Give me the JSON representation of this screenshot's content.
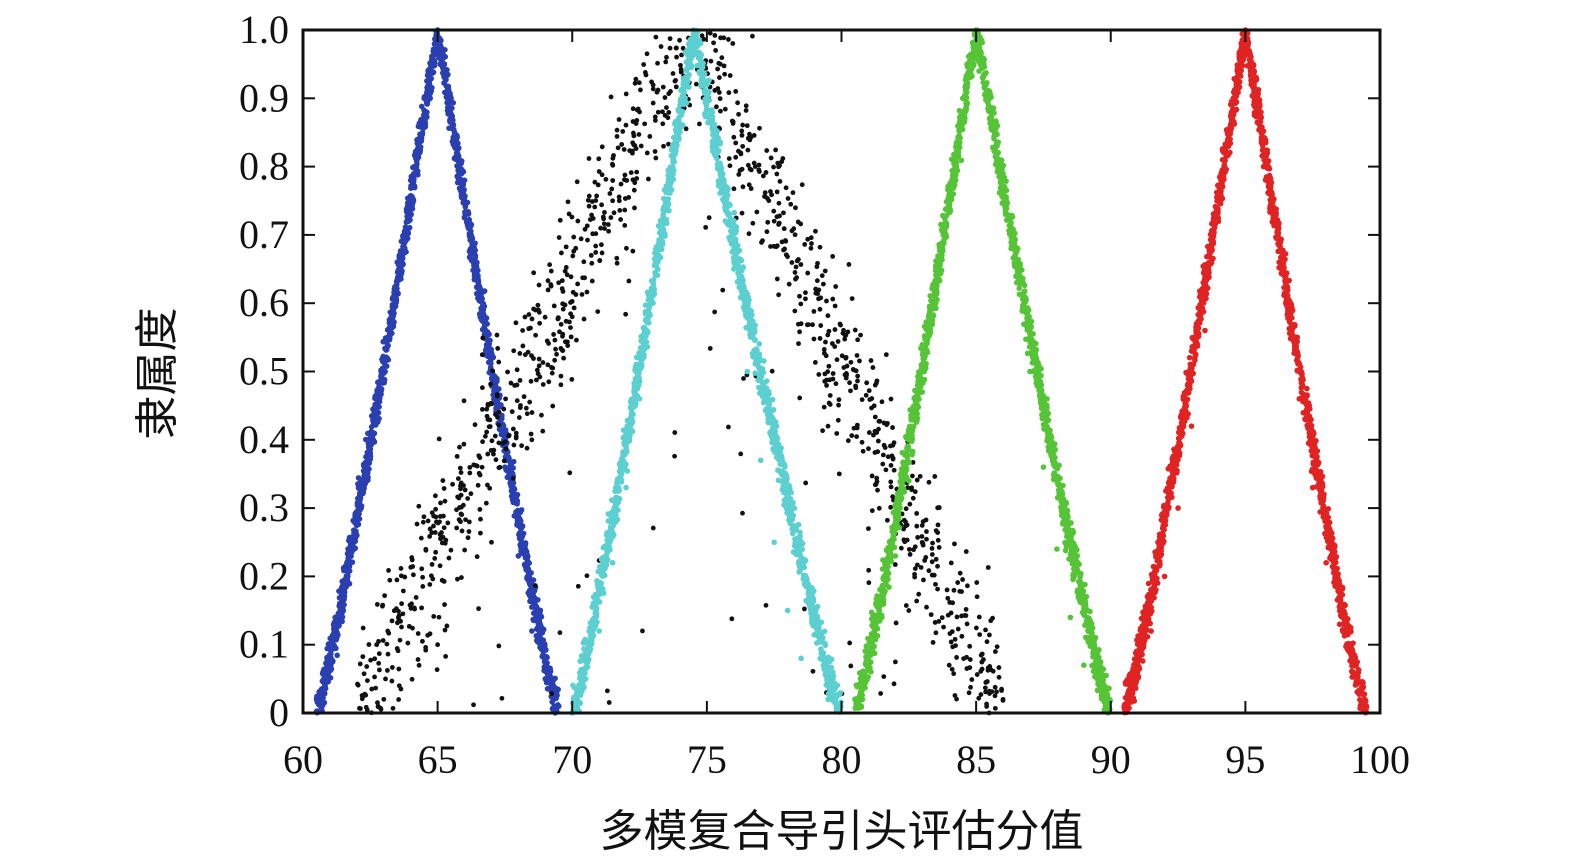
{
  "chart_data": {
    "type": "scatter",
    "xlabel": "多模复合导引头评估分值",
    "ylabel": "隶属度",
    "xlim": [
      60,
      100
    ],
    "ylim": [
      0,
      1.0
    ],
    "x_ticks": [
      "60",
      "65",
      "70",
      "75",
      "80",
      "85",
      "90",
      "95",
      "100"
    ],
    "x_tick_values": [
      60,
      65,
      70,
      75,
      80,
      85,
      90,
      95,
      100
    ],
    "y_ticks": [
      "0",
      "0.1",
      "0.2",
      "0.3",
      "0.4",
      "0.5",
      "0.6",
      "0.7",
      "0.8",
      "0.9",
      "1.0"
    ],
    "y_tick_values": [
      0,
      0.1,
      0.2,
      0.3,
      0.4,
      0.5,
      0.6,
      0.7,
      0.8,
      0.9,
      1.0
    ],
    "grid": false,
    "legend": "none",
    "series": [
      {
        "color": "#2a3fb0",
        "peak_x": 65,
        "x_range": [
          60.5,
          69.5
        ],
        "peak_y": 1.0,
        "spread": "narrow",
        "points": [
          [
            60.5,
            0.02
          ],
          [
            61.0,
            0.07
          ],
          [
            61.5,
            0.15
          ],
          [
            62.0,
            0.26
          ],
          [
            62.5,
            0.38
          ],
          [
            63.0,
            0.52
          ],
          [
            63.5,
            0.66
          ],
          [
            64.0,
            0.78
          ],
          [
            64.5,
            0.9
          ],
          [
            65.0,
            1.0
          ],
          [
            65.5,
            0.9
          ],
          [
            66.0,
            0.78
          ],
          [
            66.5,
            0.64
          ],
          [
            67.0,
            0.5
          ],
          [
            67.5,
            0.36
          ],
          [
            68.0,
            0.23
          ],
          [
            68.5,
            0.12
          ],
          [
            69.0,
            0.05
          ],
          [
            69.5,
            0.01
          ]
        ]
      },
      {
        "color": "#111111",
        "peak_x": 74.5,
        "x_range": [
          62,
          86
        ],
        "peak_y": 1.0,
        "spread": "wide",
        "points": [
          [
            63,
            0.02
          ],
          [
            65,
            0.1
          ],
          [
            67,
            0.25
          ],
          [
            68.5,
            0.4
          ],
          [
            70,
            0.58
          ],
          [
            71.5,
            0.75
          ],
          [
            72.5,
            0.88
          ],
          [
            73.5,
            0.96
          ],
          [
            74.5,
            1.0
          ],
          [
            75.5,
            0.95
          ],
          [
            76.5,
            0.86
          ],
          [
            77.5,
            0.72
          ],
          [
            78.5,
            0.57
          ],
          [
            79.5,
            0.42
          ],
          [
            81,
            0.27
          ],
          [
            82.5,
            0.15
          ],
          [
            84,
            0.07
          ],
          [
            86,
            0.02
          ]
        ]
      },
      {
        "color": "#5ccfd0",
        "peak_x": 74.5,
        "x_range": [
          70,
          80
        ],
        "peak_y": 1.0,
        "spread": "narrow",
        "points": [
          [
            70.0,
            0.0
          ],
          [
            70.5,
            0.05
          ],
          [
            71.0,
            0.12
          ],
          [
            71.5,
            0.22
          ],
          [
            72.0,
            0.33
          ],
          [
            72.5,
            0.46
          ],
          [
            73.0,
            0.6
          ],
          [
            73.5,
            0.75
          ],
          [
            74.0,
            0.89
          ],
          [
            74.5,
            1.0
          ],
          [
            75.0,
            0.92
          ],
          [
            75.5,
            0.79
          ],
          [
            76.0,
            0.65
          ],
          [
            76.5,
            0.5
          ],
          [
            77.0,
            0.37
          ],
          [
            77.5,
            0.25
          ],
          [
            78.0,
            0.15
          ],
          [
            78.5,
            0.08
          ],
          [
            79.5,
            0.02
          ]
        ]
      },
      {
        "color": "#55c436",
        "peak_x": 85,
        "x_range": [
          80.5,
          90
        ],
        "peak_y": 1.0,
        "spread": "narrow",
        "points": [
          [
            80.5,
            0.02
          ],
          [
            81.0,
            0.07
          ],
          [
            81.5,
            0.14
          ],
          [
            82.0,
            0.23
          ],
          [
            82.5,
            0.34
          ],
          [
            83.0,
            0.47
          ],
          [
            83.5,
            0.6
          ],
          [
            84.0,
            0.76
          ],
          [
            84.5,
            0.9
          ],
          [
            85.0,
            1.0
          ],
          [
            85.5,
            0.91
          ],
          [
            86.0,
            0.79
          ],
          [
            86.5,
            0.64
          ],
          [
            87.0,
            0.5
          ],
          [
            87.5,
            0.36
          ],
          [
            88.0,
            0.24
          ],
          [
            88.5,
            0.14
          ],
          [
            89.0,
            0.07
          ],
          [
            89.8,
            0.01
          ]
        ]
      },
      {
        "color": "#e02323",
        "peak_x": 95,
        "x_range": [
          90.5,
          99.5
        ],
        "peak_y": 1.0,
        "spread": "narrow",
        "points": [
          [
            90.5,
            0.01
          ],
          [
            91.0,
            0.06
          ],
          [
            91.5,
            0.12
          ],
          [
            92.0,
            0.2
          ],
          [
            92.5,
            0.3
          ],
          [
            93.0,
            0.42
          ],
          [
            93.5,
            0.56
          ],
          [
            94.0,
            0.72
          ],
          [
            94.5,
            0.87
          ],
          [
            95.0,
            1.0
          ],
          [
            95.5,
            0.88
          ],
          [
            96.0,
            0.74
          ],
          [
            96.5,
            0.6
          ],
          [
            97.0,
            0.46
          ],
          [
            97.5,
            0.33
          ],
          [
            98.0,
            0.22
          ],
          [
            98.5,
            0.13
          ],
          [
            99.0,
            0.06
          ],
          [
            99.5,
            0.01
          ]
        ]
      }
    ]
  }
}
